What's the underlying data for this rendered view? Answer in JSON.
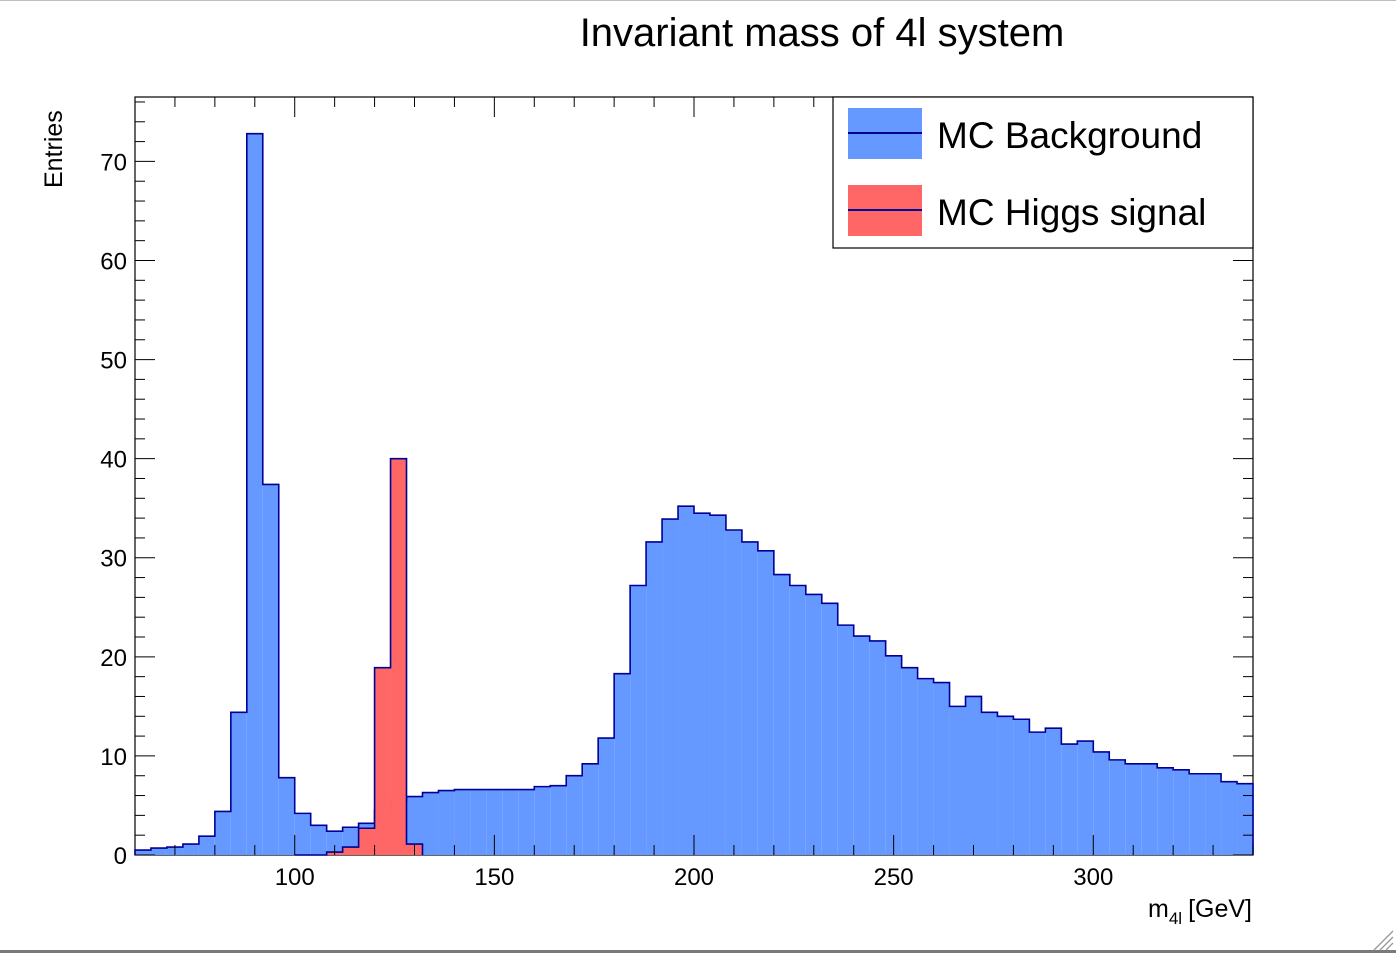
{
  "chart_data": {
    "type": "histogram",
    "title": "Invariant mass of 4l system",
    "xlabel": "m",
    "xlabel_subscript": "4l",
    "xlabel_unit": "[GeV]",
    "ylabel": "Entries",
    "xlim": [
      60,
      340
    ],
    "ylim": [
      0,
      76.5
    ],
    "bin_width": 4,
    "x_ticks": [
      100,
      150,
      200,
      250,
      300
    ],
    "y_ticks": [
      0,
      10,
      20,
      30,
      40,
      50,
      60,
      70
    ],
    "grid": false,
    "legend_position": "top-right",
    "series": [
      {
        "name": "MC Background",
        "color": "#6699ff",
        "line_color": "#000099",
        "bin_edges_start": 60,
        "values": [
          0.5,
          0.7,
          0.8,
          1.1,
          1.9,
          4.4,
          14.4,
          72.8,
          37.4,
          7.8,
          4.2,
          3.0,
          2.4,
          2.8,
          3.2,
          4.5,
          5.5,
          5.9,
          6.3,
          6.5,
          6.6,
          6.6,
          6.6,
          6.6,
          6.6,
          6.9,
          7.0,
          8.0,
          9.2,
          11.8,
          18.3,
          27.2,
          31.6,
          33.9,
          35.2,
          34.5,
          34.3,
          32.8,
          31.6,
          30.7,
          28.3,
          27.2,
          26.3,
          25.4,
          23.2,
          22.1,
          21.6,
          20.1,
          18.9,
          17.8,
          17.4,
          15.0,
          16.0,
          14.4,
          14.0,
          13.7,
          12.4,
          12.8,
          11.2,
          11.5,
          10.4,
          9.6,
          9.2,
          9.2,
          8.8,
          8.6,
          8.2,
          8.2,
          7.4,
          7.2
        ]
      },
      {
        "name": "MC Higgs signal",
        "color": "#ff6666",
        "line_color": "#000099",
        "bin_edges_start": 100,
        "values": [
          0.0,
          0.0,
          0.3,
          0.8,
          2.7,
          18.9,
          40.0,
          1.1
        ]
      }
    ]
  },
  "icons": {
    "resize_grip": "resize-grip-icon"
  }
}
